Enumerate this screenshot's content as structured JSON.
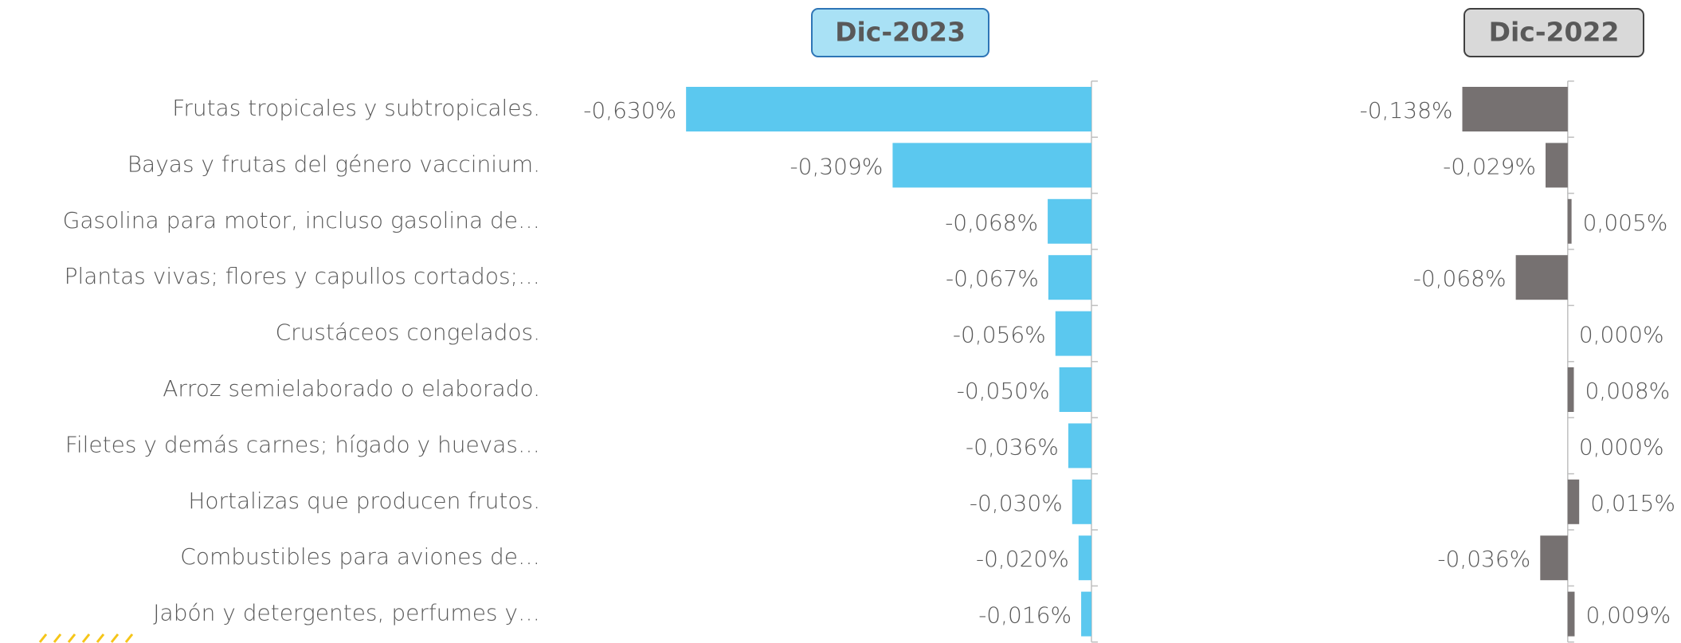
{
  "chart_data": {
    "type": "bar",
    "orientation": "horizontal",
    "categories": [
      "Frutas tropicales y subtropicales.",
      "Bayas y frutas del género vaccinium.",
      "Gasolina para motor, incluso gasolina de…",
      "Plantas vivas; flores y capullos cortados;…",
      "Crustáceos congelados.",
      "Arroz semielaborado o elaborado.",
      "Filetes y demás carnes; hígado y huevas…",
      "Hortalizas que producen frutos.",
      "Combustibles para aviones de…",
      "Jabón y detergentes, perfumes y…"
    ],
    "series": [
      {
        "name": "Dic-2023",
        "color": "#5bc8ef",
        "header_fill": "#a9e1f5",
        "header_border": "#2e75b6",
        "xlim": [
          -0.65,
          0
        ],
        "values": [
          -0.63,
          -0.309,
          -0.068,
          -0.067,
          -0.056,
          -0.05,
          -0.036,
          -0.03,
          -0.02,
          -0.016
        ],
        "value_labels": [
          "-0,630%",
          "-0,309%",
          "-0,068%",
          "-0,067%",
          "-0,056%",
          "-0,050%",
          "-0,036%",
          "-0,030%",
          "-0,020%",
          "-0,016%"
        ]
      },
      {
        "name": "Dic-2022",
        "color": "#767171",
        "header_fill": "#d9d9d9",
        "header_border": "#404040",
        "xlim": [
          -0.15,
          0.02
        ],
        "values": [
          -0.138,
          -0.029,
          0.005,
          -0.068,
          0.0,
          0.008,
          0.0,
          0.015,
          -0.036,
          0.009
        ],
        "value_labels": [
          "-0,138%",
          "-0,029%",
          "0,005%",
          "-0,068%",
          "0,000%",
          "0,008%",
          "0,000%",
          "0,015%",
          "-0,036%",
          "0,009%"
        ]
      }
    ]
  }
}
